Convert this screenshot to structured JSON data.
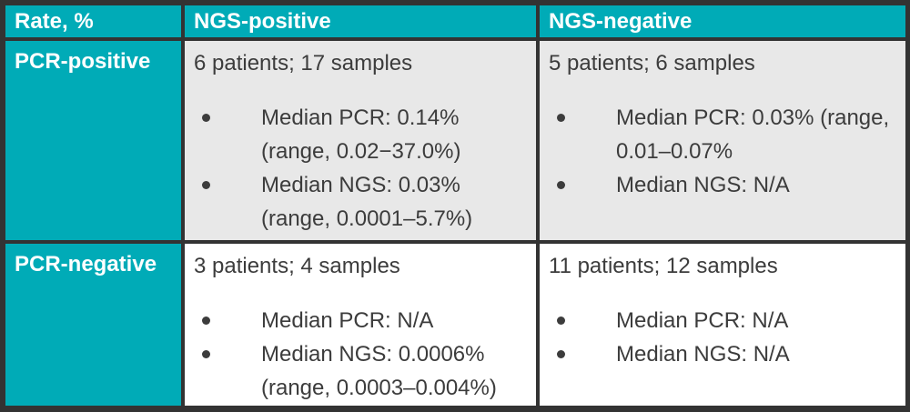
{
  "colors": {
    "teal": "#00abb7",
    "border": "#333333",
    "cell_gray": "#e8e8e8",
    "cell_white": "#ffffff",
    "text": "#3c3c3c",
    "header_text": "#ffffff"
  },
  "header": {
    "rate": "Rate, %",
    "ngs_positive": "NGS-positive",
    "ngs_negative": "NGS-negative"
  },
  "row_pcr_positive": {
    "label": "PCR-positive",
    "ngs_positive": {
      "intro": "6 patients; 17 samples",
      "b1l1": "Median PCR: 0.14%",
      "b1l2": "(range, 0.02−37.0%)",
      "b2l1": "Median NGS: 0.03%",
      "b2l2": "(range, 0.0001–5.7%)"
    },
    "ngs_negative": {
      "intro": "5 patients; 6 samples",
      "b1l1": "Median PCR: 0.03% (range,",
      "b1l2": "0.01–0.07%",
      "b2l1": "Median NGS: N/A",
      "b2l2": ""
    }
  },
  "row_pcr_negative": {
    "label": "PCR-negative",
    "ngs_positive": {
      "intro": "3 patients; 4 samples",
      "b1l1": "Median PCR: N/A",
      "b1l2": "",
      "b2l1": "Median NGS: 0.0006%",
      "b2l2": "(range, 0.0003–0.004%)"
    },
    "ngs_negative": {
      "intro": "11 patients; 12 samples",
      "b1l1": "Median PCR: N/A",
      "b1l2": "",
      "b2l1": "Median NGS: N/A",
      "b2l2": ""
    }
  },
  "chart_data": {
    "type": "table",
    "columns": [
      "Rate, %",
      "NGS-positive",
      "NGS-negative"
    ],
    "rows": [
      {
        "label": "PCR-positive",
        "NGS-positive": {
          "summary": "6 patients; 17 samples",
          "median_pcr": "0.14% (range, 0.02−37.0%)",
          "median_ngs": "0.03% (range, 0.0001–5.7%)"
        },
        "NGS-negative": {
          "summary": "5 patients; 6 samples",
          "median_pcr": "0.03% (range, 0.01–0.07%",
          "median_ngs": "N/A"
        }
      },
      {
        "label": "PCR-negative",
        "NGS-positive": {
          "summary": "3 patients; 4 samples",
          "median_pcr": "N/A",
          "median_ngs": "0.0006% (range, 0.0003–0.004%)"
        },
        "NGS-negative": {
          "summary": "11 patients; 12 samples",
          "median_pcr": "N/A",
          "median_ngs": "N/A"
        }
      }
    ]
  }
}
